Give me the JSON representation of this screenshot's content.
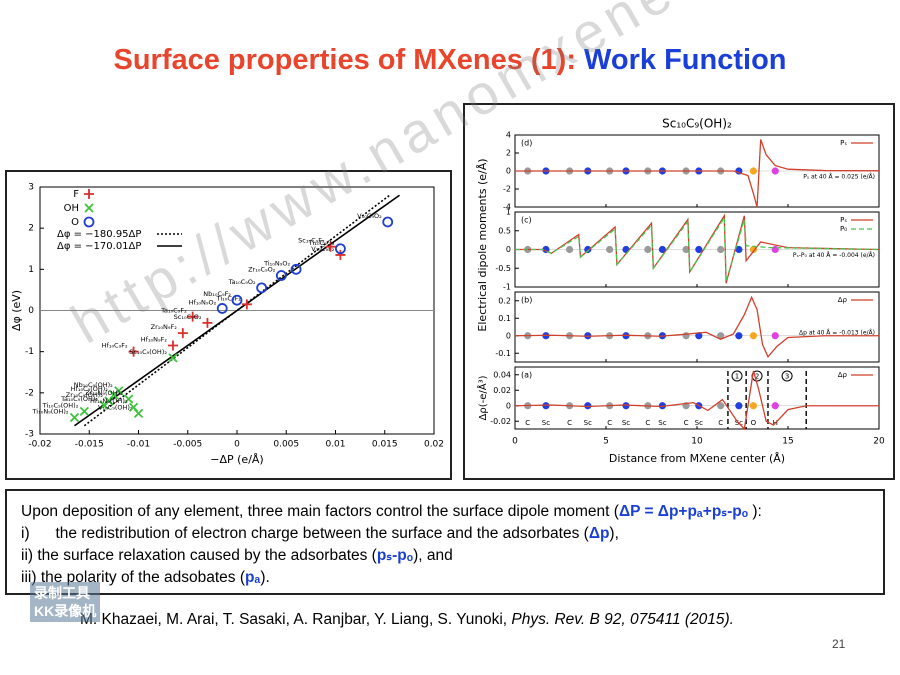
{
  "slide": {
    "title_main": "Surface properties of MXenes (1): ",
    "title_highlight": "Work Function",
    "page_number": "21"
  },
  "chart_data": [
    {
      "type": "scatter",
      "xlabel": "−ΔP (e/Å)",
      "ylabel": "Δφ (eV)",
      "xlim": [
        -0.02,
        0.02
      ],
      "ylim": [
        -3,
        3
      ],
      "xticks": [
        -0.02,
        -0.015,
        -0.01,
        -0.005,
        0,
        0.005,
        0.01,
        0.015,
        0.02
      ],
      "yticks": [
        -3,
        -2,
        -1,
        0,
        1,
        2,
        3
      ],
      "series": [
        {
          "name": "F",
          "marker": "plus",
          "color": "#d9302c",
          "x": [
            0.0105,
            0.0095,
            0.001,
            -0.0045,
            -0.003,
            -0.0055,
            -0.0065,
            -0.0105
          ],
          "values": [
            1.35,
            1.55,
            0.15,
            -0.15,
            -0.3,
            -0.55,
            -0.85,
            -1.0
          ],
          "labels": [
            "V₁₀C₉F₂",
            "Sc₁₀C₉F₂",
            "Ti₁₀C₉F₂",
            "Ta₁₀C₉F₂",
            "Sc₁₀C₉O₂",
            "Zr₁₀N₉F₂",
            "Hf₁₀N₉F₂",
            "Hf₁₀C₉F₂"
          ]
        },
        {
          "name": "OH",
          "marker": "cross",
          "color": "#3cc43c",
          "x": [
            -0.0065,
            -0.012,
            -0.0125,
            -0.013,
            -0.0135,
            -0.0155,
            -0.0165,
            -0.01,
            -0.011,
            -0.0105
          ],
          "values": [
            -1.15,
            -1.95,
            -2.05,
            -2.2,
            -2.3,
            -2.45,
            -2.6,
            -2.5,
            -2.15,
            -2.35
          ],
          "labels": [
            "Sc₁₀C₉(OH)₂",
            "Nb₁₀C₉(OH)₂",
            "Hf₁₀C₉(OH)₂",
            "Zr₁₀C₉(OH)₂",
            "Ta₁₀C₉(OH)₂",
            "Ti₁₀C₉(OH)₂",
            "Ti₁₀N₉(OH)₂",
            "V₁₀C₉(OH)₂",
            "Zr₁₀N₉(OH)₂",
            "Hf₁₀N₉(OH)₂"
          ]
        },
        {
          "name": "O",
          "marker": "circle",
          "color": "#1f3fd0",
          "x": [
            0.0153,
            0.0105,
            0.006,
            0.0045,
            0.0025,
            0.0,
            -0.0015
          ],
          "values": [
            2.15,
            1.5,
            1.0,
            0.85,
            0.55,
            0.25,
            0.05
          ],
          "labels": [
            "V₁₀C₉O₂",
            "Ti₁₀C₉O₂",
            "Ti₁₀N₉O₂",
            "Zr₁₀C₉O₂",
            "Ta₁₀C₉O₂",
            "Nb₁₀C₉F₂",
            "Hf₁₀N₉O₂"
          ]
        }
      ],
      "fits": [
        {
          "name": "Δφ = −180.95ΔP",
          "style": "dotted",
          "color": "#000",
          "x": [
            -0.0155,
            0.0155
          ],
          "values": [
            -2.8,
            2.8
          ]
        },
        {
          "name": "Δφ = −170.01ΔP",
          "style": "solid",
          "color": "#000",
          "x": [
            -0.0165,
            0.0165
          ],
          "values": [
            -2.8,
            2.8
          ]
        }
      ]
    },
    {
      "type": "panels",
      "title": "Sc₁₀C₉(OH)₂",
      "xlabel": "Distance from MXene center (Å)",
      "ylabel": "Electrical dipole moments (e/Å)",
      "xlim": [
        0,
        20
      ],
      "xticks": [
        0,
        5,
        10,
        15,
        20
      ],
      "atoms": {
        "names": [
          "C",
          "Sc",
          "C",
          "Sc",
          "C",
          "Sc",
          "C",
          "Sc",
          "C",
          "Sc",
          "C",
          "Sc",
          "O",
          "H"
        ],
        "x": [
          0.7,
          1.7,
          3.0,
          4.0,
          5.2,
          6.1,
          7.3,
          8.1,
          9.4,
          10.1,
          11.3,
          12.3,
          13.1,
          14.3
        ]
      },
      "atom_colors": {
        "C": "#9a9a9a",
        "Sc": "#1f3fe0",
        "O": "#f5a623",
        "H": "#e040e0"
      },
      "panels": [
        {
          "label": "(d)",
          "ylim": [
            -4,
            4
          ],
          "yticks": [
            -4,
            -2,
            0,
            2,
            4
          ],
          "series": [
            {
              "name": "Pₛ",
              "color": "#d0402c",
              "style": "solid",
              "x": [
                0,
                5,
                10,
                12,
                12.8,
                13.1,
                13.3,
                13.5,
                13.8,
                14.3,
                15,
                17,
                20
              ],
              "values": [
                0,
                0,
                0,
                0,
                -0.5,
                -2.5,
                -4,
                3.5,
                1.8,
                0.6,
                0.2,
                0.05,
                0.02
              ]
            }
          ],
          "note": "Pₛ at 40 Å = 0.025 (e/Å)"
        },
        {
          "label": "(c)",
          "ylim": [
            -1,
            1
          ],
          "yticks": [
            -1,
            -0.5,
            0,
            0.5,
            1
          ],
          "series": [
            {
              "name": "Pₛ",
              "color": "#d0402c",
              "style": "solid",
              "x": [
                0,
                1.5,
                2,
                3.5,
                3.6,
                5.5,
                5.6,
                7.5,
                7.6,
                9.5,
                9.6,
                11.5,
                11.6,
                12.6,
                12.7,
                13.5,
                15,
                20
              ],
              "values": [
                0,
                0,
                -0.1,
                0.4,
                -0.2,
                0.6,
                -0.4,
                0.7,
                -0.5,
                0.8,
                -0.6,
                0.9,
                -0.9,
                0.9,
                -0.3,
                0.2,
                0.05,
                0
              ]
            },
            {
              "name": "P₀",
              "color": "#4cc04c",
              "style": "dashed",
              "x": [
                0,
                1.5,
                2,
                3.5,
                3.6,
                5.5,
                5.6,
                7.5,
                7.6,
                9.5,
                9.6,
                11.5,
                11.6,
                12.6,
                12.7,
                14,
                20
              ],
              "values": [
                0,
                0,
                -0.1,
                0.35,
                -0.2,
                0.55,
                -0.4,
                0.65,
                -0.5,
                0.75,
                -0.6,
                0.85,
                -0.85,
                0.8,
                0.1,
                0.05,
                0
              ]
            }
          ],
          "note": "Pₛ-P₀ at 40 Å = -0.004 (e/Å)"
        },
        {
          "label": "(b)",
          "ylim": [
            -0.15,
            0.25
          ],
          "yticks": [
            -0.1,
            0,
            0.1,
            0.2
          ],
          "series": [
            {
              "name": "Δρ",
              "color": "#d0402c",
              "style": "solid",
              "x": [
                0,
                2,
                4,
                6,
                8,
                9.5,
                10.5,
                11.3,
                12,
                12.6,
                13.0,
                13.3,
                13.6,
                13.9,
                14.4,
                15,
                17,
                20
              ],
              "values": [
                0,
                0.003,
                -0.003,
                0.003,
                -0.003,
                0.01,
                0.02,
                -0.02,
                0.01,
                0.12,
                0.22,
                0.15,
                -0.05,
                -0.12,
                -0.06,
                -0.01,
                0,
                0
              ]
            }
          ],
          "note": "Δp at 40 Å = -0.013 (e/Å)"
        },
        {
          "label": "(a)",
          "ylim": [
            -0.03,
            0.05
          ],
          "yticks": [
            -0.02,
            0,
            0.02,
            0.04
          ],
          "ylabel": "Δρ(-e/Å³)",
          "series": [
            {
              "name": "Δρ",
              "color": "#d0402c",
              "style": "solid",
              "x": [
                0,
                2,
                4,
                6,
                8,
                9.8,
                10.6,
                11.4,
                12.2,
                12.6,
                13.1,
                13.4,
                13.8,
                14.2,
                15,
                16,
                20
              ],
              "values": [
                0,
                0.001,
                -0.001,
                0.001,
                -0.001,
                0.004,
                -0.006,
                0.008,
                -0.02,
                -0.03,
                0.045,
                0.02,
                -0.02,
                -0.025,
                -0.005,
                0,
                0
              ]
            }
          ],
          "region_bounds": [
            11.7,
            12.7,
            13.9,
            16
          ],
          "region_labels": [
            "1",
            "2",
            "3"
          ]
        }
      ]
    }
  ],
  "text_box": {
    "intro": "Upon deposition of any element, three main factors control the surface dipole moment (",
    "formula": "ΔP = Δp+pₐ+pₛ-pₒ",
    "intro_end": " ):",
    "items": [
      {
        "prefix": "i)      ",
        "text": "the redistribution of electron charge between the surface and the adsorbates (",
        "term": "Δp",
        "end": "),"
      },
      {
        "prefix": "ii) ",
        "text": "the surface relaxation caused by the adsorbates (",
        "term": "pₛ-pₒ",
        "end": "), and"
      },
      {
        "prefix": "iii) ",
        "text": "the polarity of the adsobates (",
        "term": "pₐ",
        "end": ")."
      }
    ]
  },
  "reference": {
    "authors": "M. Khazaei, M. Arai, T. Sasaki, A. Ranjbar, Y. Liang, S. Yunoki, ",
    "journal": "Phys. Rev. B 92, 075411 (2015)."
  },
  "watermark": "http://www.nanomxenes.com",
  "recorder_badge": [
    "录制工具",
    "KK录像机"
  ]
}
